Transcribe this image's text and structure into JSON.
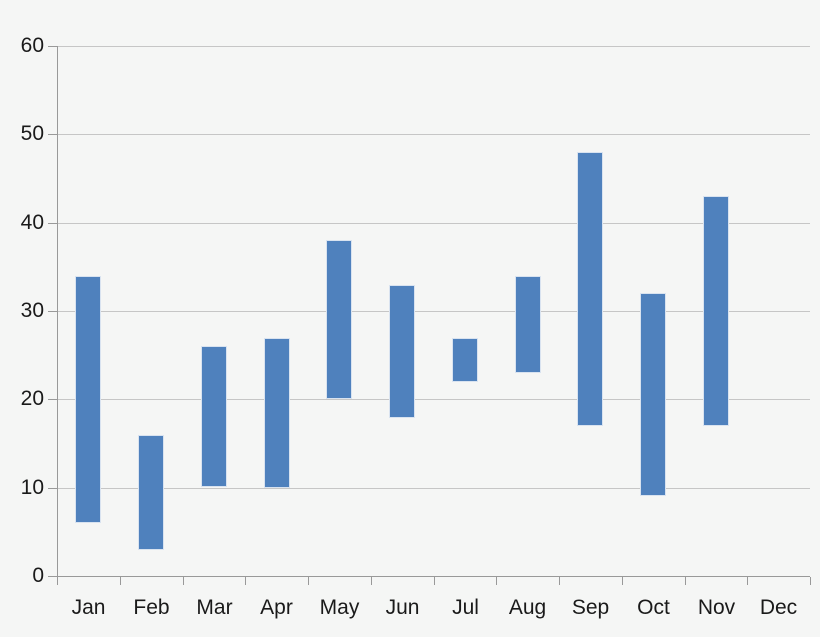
{
  "background_color": "#f5f6f5",
  "chart_data": {
    "type": "bar",
    "subtype": "floating_range_columns",
    "title": "",
    "xlabel": "",
    "ylabel": "",
    "categories": [
      "Jan",
      "Feb",
      "Mar",
      "Apr",
      "May",
      "Jun",
      "Jul",
      "Aug",
      "Sep",
      "Oct",
      "Nov",
      "Dec"
    ],
    "series": [
      {
        "name": "range",
        "low": [
          6,
          3,
          10,
          10,
          20,
          18,
          22,
          23,
          17,
          9,
          17,
          null
        ],
        "high": [
          34,
          16,
          26,
          27,
          38,
          33,
          27,
          34,
          48,
          32,
          43,
          null
        ]
      }
    ],
    "ylim": [
      0,
      60
    ],
    "ytick_interval": 10,
    "ytick_labels": [
      "0",
      "10",
      "20",
      "30",
      "40",
      "50",
      "60"
    ],
    "grid": true,
    "legend": false,
    "colors": {
      "bar_fill": "#4f81bd",
      "bar_border": "#d9e3f0",
      "gridline": "#c6c6c6",
      "axis": "#999999",
      "text": "#1a1a1a"
    }
  }
}
